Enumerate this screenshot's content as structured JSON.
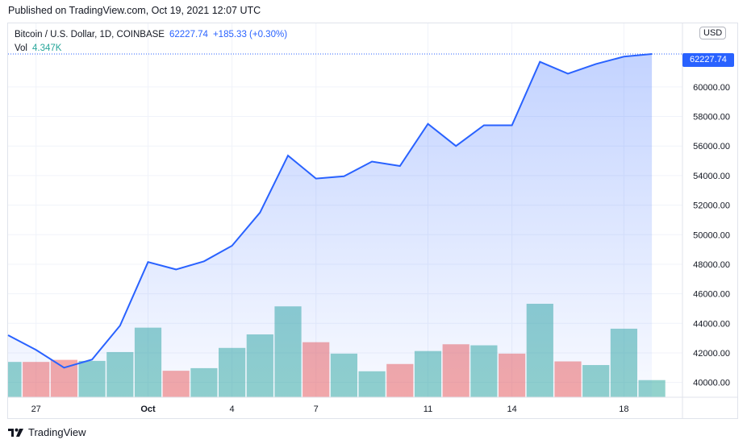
{
  "published": "Published on TradingView.com, Oct 19, 2021 12:07 UTC",
  "legend": {
    "symbol": "Bitcoin / U.S. Dollar, 1D, COINBASE",
    "last": "62227.74",
    "change": "+185.33 (+0.30%)",
    "vol_label": "Vol",
    "vol_value": "4.347K"
  },
  "currency_button": "USD",
  "last_price_tag": "62227.74",
  "footer_brand": "TradingView",
  "colors": {
    "line": "#2962ff",
    "vol_up": "#26a69a",
    "vol_down": "#ef5350",
    "grid": "#f0f3fa"
  },
  "chart_data": [
    {
      "type": "area",
      "title": "Bitcoin / U.S. Dollar, 1D, COINBASE",
      "x": [
        "Sep 26",
        "Sep 27",
        "Sep 28",
        "Sep 29",
        "Sep 30",
        "Oct 1",
        "Oct 2",
        "Oct 3",
        "Oct 4",
        "Oct 5",
        "Oct 6",
        "Oct 7",
        "Oct 8",
        "Oct 9",
        "Oct 10",
        "Oct 11",
        "Oct 12",
        "Oct 13",
        "Oct 14",
        "Oct 15",
        "Oct 16",
        "Oct 17",
        "Oct 18",
        "Oct 19"
      ],
      "values": [
        43200,
        42200,
        41000,
        41550,
        43850,
        48150,
        47650,
        48200,
        49250,
        51500,
        55350,
        53800,
        53950,
        54950,
        54650,
        57500,
        56000,
        57400,
        57400,
        61700,
        60900,
        61550,
        62050,
        62227.74
      ],
      "y_ticks": [
        "40000.00",
        "42000.00",
        "44000.00",
        "46000.00",
        "48000.00",
        "50000.00",
        "52000.00",
        "54000.00",
        "56000.00",
        "58000.00",
        "60000.00"
      ],
      "x_ticks": [
        "27",
        "Oct",
        "4",
        "7",
        "11",
        "14",
        "18"
      ],
      "ylim": [
        39000,
        64300
      ],
      "grid": true
    },
    {
      "type": "bar",
      "series_name": "Vol",
      "x": [
        "Sep 26",
        "Sep 27",
        "Sep 28",
        "Sep 29",
        "Sep 30",
        "Oct 1",
        "Oct 2",
        "Oct 3",
        "Oct 4",
        "Oct 5",
        "Oct 6",
        "Oct 7",
        "Oct 8",
        "Oct 9",
        "Oct 10",
        "Oct 11",
        "Oct 12",
        "Oct 13",
        "Oct 14",
        "Oct 15",
        "Oct 16",
        "Oct 17",
        "Oct 18",
        "Oct 19"
      ],
      "values": [
        0.68,
        0.68,
        0.72,
        0.7,
        0.87,
        1.34,
        0.51,
        0.56,
        0.95,
        1.21,
        1.75,
        1.06,
        0.84,
        0.5,
        0.64,
        0.89,
        1.02,
        1.0,
        0.84,
        1.8,
        0.69,
        0.62,
        1.32,
        0.33
      ],
      "direction": [
        "up",
        "down",
        "down",
        "up",
        "up",
        "up",
        "down",
        "up",
        "up",
        "up",
        "up",
        "down",
        "up",
        "up",
        "down",
        "up",
        "down",
        "up",
        "down",
        "up",
        "down",
        "up",
        "up",
        "up"
      ]
    }
  ]
}
